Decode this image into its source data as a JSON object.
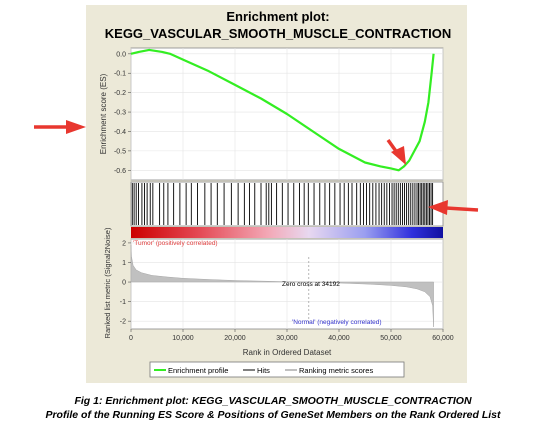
{
  "figure": {
    "title_line1": "Enrichment plot:",
    "title_line2": "KEGG_VASCULAR_SMOOTH_MUSCLE_CONTRACTION",
    "caption_line1": "Fig 1: Enrichment plot: KEGG_VASCULAR_SMOOTH_MUSCLE_CONTRACTION",
    "caption_line2": "Profile of the Running ES Score & Positions of GeneSet Members on the Rank Ordered List"
  },
  "colors": {
    "panel_bg": "#ece9d8",
    "es_line": "#33ee22",
    "hits": "#000000",
    "metric_fill": "#c0c0c0",
    "arrow": "#e8372f",
    "tumor_label": "#e04040",
    "normal_label": "#3333cc"
  },
  "chart_data": [
    {
      "type": "line",
      "panel": "running-enrichment-score",
      "ylabel": "Enrichment score (ES)",
      "xlim": [
        0,
        60000
      ],
      "ylim": [
        -0.65,
        0.03
      ],
      "yticks": [
        "0.0",
        "-0.1",
        "-0.2",
        "-0.3",
        "-0.4",
        "-0.5",
        "-0.6"
      ],
      "yticks_values": [
        0.0,
        -0.1,
        -0.2,
        -0.3,
        -0.4,
        -0.5,
        -0.6
      ],
      "grid": true,
      "series": [
        {
          "name": "Enrichment profile",
          "x": [
            0,
            1500,
            3500,
            6000,
            7500,
            10000,
            15000,
            20000,
            25000,
            30000,
            35000,
            40000,
            45000,
            48000,
            50000,
            51500,
            52500,
            53500,
            54500,
            55500,
            56500,
            57200,
            57800,
            58200
          ],
          "values": [
            0.0,
            0.01,
            0.02,
            0.01,
            0.0,
            -0.03,
            -0.09,
            -0.16,
            -0.23,
            -0.31,
            -0.4,
            -0.49,
            -0.56,
            -0.58,
            -0.59,
            -0.6,
            -0.58,
            -0.55,
            -0.5,
            -0.45,
            -0.35,
            -0.25,
            -0.1,
            0.0
          ]
        }
      ]
    },
    {
      "type": "scatter",
      "panel": "geneset-hits",
      "series": [
        {
          "name": "Hits",
          "x": [
            250,
            600,
            1000,
            1450,
            2100,
            2600,
            3100,
            3700,
            4200,
            5500,
            6300,
            7100,
            8200,
            9400,
            10600,
            11600,
            12800,
            14200,
            15400,
            16600,
            17900,
            19300,
            20600,
            21800,
            22800,
            23800,
            25000,
            26000,
            26500,
            27000,
            28000,
            29100,
            30200,
            31300,
            32400,
            33300,
            34100,
            35200,
            36300,
            37300,
            38200,
            39200,
            40200,
            41000,
            41800,
            42500,
            43400,
            44100,
            44700,
            45300,
            45900,
            46500,
            47100,
            47700,
            48200,
            48700,
            49200,
            49700,
            50200,
            50600,
            51000,
            51400,
            51800,
            52200,
            52600,
            53000,
            53400,
            53800,
            54200,
            54600,
            55000,
            55300,
            55600,
            55900,
            56200,
            56500,
            56800,
            57100,
            57400,
            57700,
            58000
          ]
        }
      ]
    },
    {
      "type": "area",
      "panel": "ranked-list-metric",
      "ylabel": "Ranked list metric (Signal2Noise)",
      "xlabel": "Rank in Ordered Dataset",
      "xlim": [
        0,
        60000
      ],
      "xticks": [
        "0",
        "10,000",
        "20,000",
        "30,000",
        "40,000",
        "50,000",
        "60,000"
      ],
      "xticks_values": [
        0,
        10000,
        20000,
        30000,
        40000,
        50000,
        60000
      ],
      "ylim": [
        -2.4,
        2.2
      ],
      "yticks": [
        "2",
        "1",
        "0",
        "-1",
        "-2"
      ],
      "yticks_values": [
        2,
        1,
        0,
        -1,
        -2
      ],
      "zero_cross": 34192,
      "zero_cross_label": "Zero cross at 34192",
      "positive_label": "'Tumor' (positively correlated)",
      "negative_label": "'Normal' (negatively correlated)",
      "series": [
        {
          "name": "Ranking metric scores",
          "x": [
            0,
            100,
            400,
            1000,
            2000,
            4000,
            7000,
            10000,
            15000,
            20000,
            25000,
            30000,
            34192,
            38000,
            42000,
            46000,
            50000,
            53000,
            55000,
            56500,
            57500,
            58000,
            58200
          ],
          "values": [
            1.9,
            1.3,
            0.85,
            0.62,
            0.48,
            0.34,
            0.26,
            0.19,
            0.13,
            0.08,
            0.05,
            0.02,
            0.0,
            -0.03,
            -0.07,
            -0.11,
            -0.17,
            -0.25,
            -0.35,
            -0.5,
            -0.75,
            -1.2,
            -2.3
          ]
        }
      ]
    }
  ],
  "legend": {
    "items": [
      "Enrichment profile",
      "Hits",
      "Ranking metric scores"
    ],
    "placement": "bottom"
  }
}
